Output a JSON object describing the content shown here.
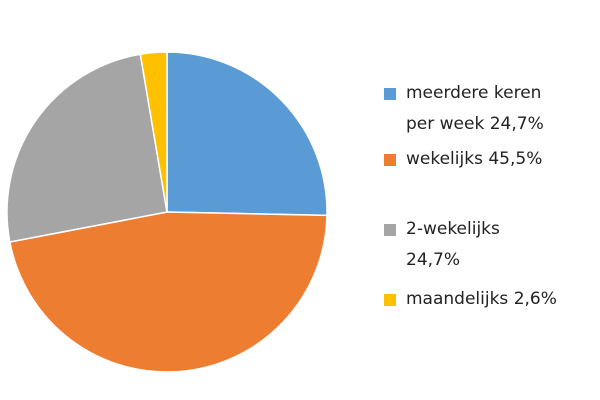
{
  "chart_data": {
    "type": "pie",
    "categories": [
      "meerdere keren per week",
      "wekelijks",
      "2-wekelijks",
      "maandelijks"
    ],
    "values": [
      24.7,
      45.5,
      24.7,
      2.6
    ],
    "value_labels": [
      "24,7%",
      "45,5%",
      "24,7%",
      "2,6%"
    ],
    "colors": [
      "#5b9bd5",
      "#ed7d31",
      "#a5a5a5",
      "#ffc000"
    ],
    "legend": "right"
  }
}
